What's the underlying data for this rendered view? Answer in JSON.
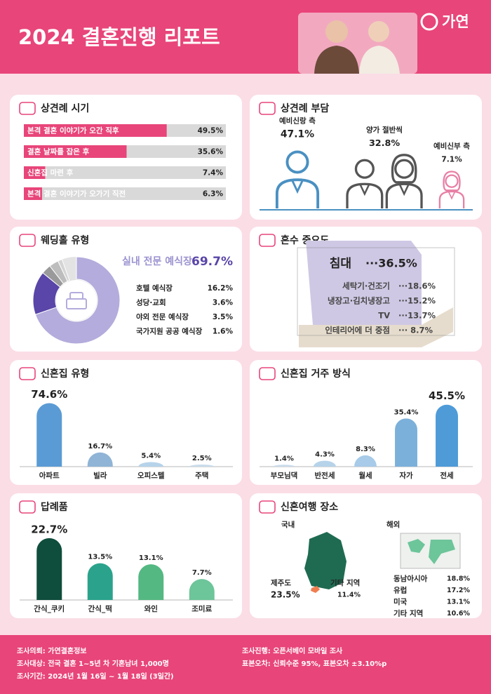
{
  "header": {
    "title": "2024 결혼진행 리포트",
    "brand": "가연"
  },
  "chart_data": [
    {
      "type": "hbar",
      "title": "상견례 시기",
      "categories": [
        "본격 결혼 이야기가 오간 직후",
        "결혼 날짜를 잡은 후",
        "신혼집 마련 후",
        "본격 결혼 이야기가 오가기 직전"
      ],
      "values": [
        49.5,
        35.6,
        7.4,
        6.3
      ],
      "value_labels": [
        "49.5%",
        "35.6%",
        "7.4%",
        "6.3%"
      ],
      "xlim": [
        0,
        70
      ],
      "color": "#e8457a",
      "track_color": "#d9d9d9"
    },
    {
      "type": "pictogram",
      "title": "상견례 부담",
      "categories": [
        "예비신랑 측",
        "양가 절반씩",
        "예비신부 측"
      ],
      "values": [
        47.1,
        32.8,
        7.1
      ],
      "value_labels": [
        "47.1%",
        "32.8%",
        "7.1%"
      ],
      "colors": [
        "#4a90c2",
        "#555555",
        "#e87fa5"
      ]
    },
    {
      "type": "pie",
      "title": "웨딩홀 유형",
      "categories": [
        "실내 전문 예식장",
        "호텔 예식장",
        "성당·교회",
        "야외 전문 예식장",
        "국가지원 공공 예식장"
      ],
      "values": [
        69.7,
        16.2,
        3.6,
        3.5,
        1.6
      ],
      "value_labels": [
        "69.7%",
        "16.2%",
        "3.6%",
        "3.5%",
        "1.6%"
      ],
      "colors": [
        "#b3acdc",
        "#5a45a8",
        "#9a9a9a",
        "#bdbdbd",
        "#d4d4d4"
      ],
      "track_color": "#e3e3e3"
    },
    {
      "type": "list",
      "title": "혼수 중요도",
      "categories": [
        "침대",
        "세탁기·건조기",
        "냉장고·김치냉장고",
        "TV",
        "인테리어에 더 중점"
      ],
      "values": [
        36.5,
        18.6,
        15.2,
        13.7,
        8.7
      ],
      "value_labels": [
        "···36.5%",
        "···18.6%",
        "···15.2%",
        "···13.7%",
        "··· 8.7%"
      ]
    },
    {
      "type": "vbar",
      "title": "신혼집 유형",
      "categories": [
        "아파트",
        "빌라",
        "오피스텔",
        "주택"
      ],
      "values": [
        74.6,
        16.7,
        5.4,
        2.5
      ],
      "value_labels": [
        "74.6%",
        "16.7%",
        "5.4%",
        "2.5%"
      ],
      "ylim": [
        0,
        80
      ],
      "colors": [
        "#5b9bd5",
        "#8fb4d6",
        "#b6d3ea",
        "#c9dcec"
      ]
    },
    {
      "type": "vbar",
      "title": "신혼집 거주 방식",
      "categories": [
        "부모님댁",
        "반전세",
        "월세",
        "자가",
        "전세"
      ],
      "values": [
        1.4,
        4.3,
        8.3,
        35.4,
        45.5
      ],
      "value_labels": [
        "1.4%",
        "4.3%",
        "8.3%",
        "35.4%",
        "45.5%"
      ],
      "ylim": [
        0,
        50
      ],
      "colors": [
        "#c9dcec",
        "#b6d3ea",
        "#a7cbe8",
        "#7bb0da",
        "#4e9bd8"
      ]
    },
    {
      "type": "vbar",
      "title": "답례품",
      "categories": [
        "간식_쿠키",
        "간식_떡",
        "와인",
        "조미료"
      ],
      "values": [
        22.7,
        13.5,
        13.1,
        7.7
      ],
      "value_labels": [
        "22.7%",
        "13.5%",
        "13.1%",
        "7.7%"
      ],
      "ylim": [
        0,
        25
      ],
      "colors": [
        "#0f4d3c",
        "#2ba38c",
        "#54b882",
        "#6dc59a"
      ]
    },
    {
      "type": "travel",
      "title": "신혼여행 장소",
      "groups": [
        {
          "name": "국내",
          "categories": [
            "제주도",
            "기타 지역"
          ],
          "values": [
            23.5,
            11.4
          ],
          "value_labels": [
            "23.5%",
            "11.4%"
          ]
        },
        {
          "name": "해외",
          "categories": [
            "동남아시아",
            "유럽",
            "미국",
            "기타 지역"
          ],
          "values": [
            18.8,
            17.2,
            13.1,
            10.6
          ],
          "value_labels": [
            "18.8%",
            "17.2%",
            "13.1%",
            "10.6%"
          ]
        }
      ]
    }
  ],
  "footer": {
    "left": [
      "조사의뢰: 가연결혼정보",
      "조사대상: 전국 결혼 1~5년 차 기혼남녀 1,000명",
      "조사기간: 2024년 1월 16일 ~ 1월 18일 (3일간)"
    ],
    "right": [
      "조사진행: 오픈서베이 모바일 조사",
      "표본오차: 신뢰수준 95%, 표본오차 ±3.10%p"
    ]
  }
}
